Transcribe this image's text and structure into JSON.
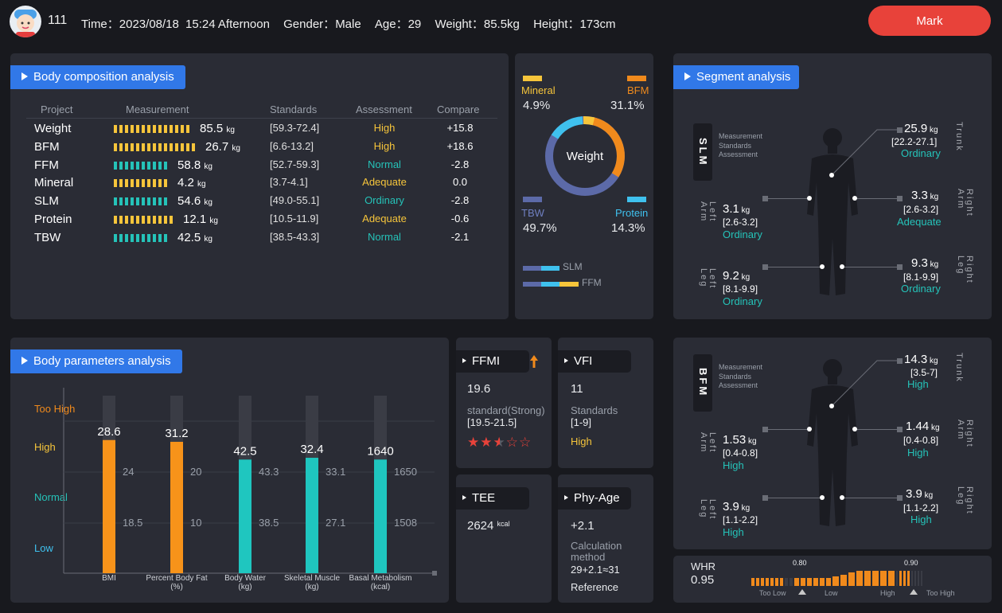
{
  "header": {
    "user_id": "111",
    "time_label": "Time：",
    "date": "2023/08/18",
    "clock": "15:24 Afternoon",
    "gender_label": "Gender：",
    "gender": "Male",
    "age_label": "Age：",
    "age": "29",
    "weight_label": "Weight：",
    "weight": "85.5kg",
    "height_label": "Height：",
    "height": "173cm",
    "mark_button": "Mark"
  },
  "composition": {
    "title": "Body composition analysis",
    "col_project": "Project",
    "col_measurement": "Measurement",
    "col_standards": "Standards",
    "col_assessment": "Assessment",
    "col_compare": "Compare",
    "unit": "kg",
    "rows": [
      {
        "name": "Weight",
        "value": "85.5",
        "standard": "[59.3-72.4]",
        "assessment": "High",
        "compare": "+15.8",
        "bar_segments": 14,
        "color": "#f6c53b",
        "assess_color": "#f6c53b"
      },
      {
        "name": "BFM",
        "value": "26.7",
        "standard": "[6.6-13.2]",
        "assessment": "High",
        "compare": "+18.6",
        "bar_segments": 15,
        "color": "#f6c53b",
        "assess_color": "#f6c53b"
      },
      {
        "name": "FFM",
        "value": "58.8",
        "standard": "[52.7-59.3]",
        "assessment": "Normal",
        "compare": "-2.8",
        "bar_segments": 10,
        "color": "#25c3b9",
        "assess_color": "#25c3b9"
      },
      {
        "name": "Mineral",
        "value": "4.2",
        "standard": "[3.7-4.1]",
        "assessment": "Adequate",
        "compare": "0.0",
        "bar_segments": 10,
        "color": "#f6c53b",
        "assess_color": "#f6c53b"
      },
      {
        "name": "SLM",
        "value": "54.6",
        "standard": "[49.0-55.1]",
        "assessment": "Ordinary",
        "compare": "-2.8",
        "bar_segments": 10,
        "color": "#25c3b9",
        "assess_color": "#25c3b9"
      },
      {
        "name": "Protein",
        "value": "12.1",
        "standard": "[10.5-11.9]",
        "assessment": "Adequate",
        "compare": "-0.6",
        "bar_segments": 11,
        "color": "#f6c53b",
        "assess_color": "#f6c53b"
      },
      {
        "name": "TBW",
        "value": "42.5",
        "standard": "[38.5-43.3]",
        "assessment": "Normal",
        "compare": "-2.1",
        "bar_segments": 10,
        "color": "#25c3b9",
        "assess_color": "#25c3b9"
      }
    ]
  },
  "weight_ring": {
    "center": "Weight",
    "mineral": {
      "label": "Mineral",
      "pct": "4.9%",
      "color": "#f6c53b"
    },
    "bfm": {
      "label": "BFM",
      "pct": "31.1%",
      "color": "#f08a1c"
    },
    "tbw": {
      "label": "TBW",
      "pct": "49.7%",
      "color": "#5c6aa8"
    },
    "protein": {
      "label": "Protein",
      "pct": "14.3%",
      "color": "#3fc1ee"
    },
    "legend_slm": "SLM",
    "legend_ffm": "FFM"
  },
  "segment": {
    "title": "Segment analysis",
    "slm": {
      "label": "SLM",
      "legend": [
        "Measurement",
        "Standards",
        "Assessment"
      ],
      "trunk": {
        "label": "Trunk",
        "value": "25.9",
        "std": "[22.2-27.1]",
        "as": "Ordinary"
      },
      "left_arm": {
        "label": "Left Arm",
        "value": "3.1",
        "std": "[2.6-3.2]",
        "as": "Ordinary"
      },
      "right_arm": {
        "label": "Right Arm",
        "value": "3.3",
        "std": "[2.6-3.2]",
        "as": "Adequate"
      },
      "left_leg": {
        "label": "Left Leg",
        "value": "9.2",
        "std": "[8.1-9.9]",
        "as": "Ordinary"
      },
      "right_leg": {
        "label": "Right Leg",
        "value": "9.3",
        "std": "[8.1-9.9]",
        "as": "Ordinary"
      }
    },
    "bfm": {
      "label": "BFM",
      "legend": [
        "Measurement",
        "Standards",
        "Assessment"
      ],
      "trunk": {
        "label": "Trunk",
        "value": "14.3",
        "std": "[3.5-7]",
        "as": "High"
      },
      "left_arm": {
        "label": "Left Arm",
        "value": "1.53",
        "std": "[0.4-0.8]",
        "as": "High"
      },
      "right_arm": {
        "label": "Right Arm",
        "value": "1.44",
        "std": "[0.4-0.8]",
        "as": "High"
      },
      "left_leg": {
        "label": "Left Leg",
        "value": "3.9",
        "std": "[1.1-2.2]",
        "as": "High"
      },
      "right_leg": {
        "label": "Right Leg",
        "value": "3.9",
        "std": "[1.1-2.2]",
        "as": "High"
      }
    }
  },
  "parameters": {
    "title": "Body parameters analysis",
    "levels": [
      "Too High",
      "High",
      "Normal",
      "Low"
    ]
  },
  "chart_data": {
    "type": "bar",
    "categories": [
      "BMI",
      "Percent Body Fat (%)",
      "Body Water (kg)",
      "Skeletal Muscle (kg)",
      "Basal Metabolism (kcal)"
    ],
    "values": [
      28.6,
      31.2,
      42.5,
      32.4,
      1640
    ],
    "value_labels": [
      "28.6",
      "31.2",
      "42.5",
      "32.4",
      "1640"
    ],
    "upper_standard": [
      "24",
      "20",
      "43.3",
      "33.1",
      "1650"
    ],
    "lower_standard": [
      "18.5",
      "10",
      "38.5",
      "27.1",
      "1508"
    ],
    "level_fraction": [
      0.75,
      0.74,
      0.64,
      0.65,
      0.64
    ],
    "colors": [
      "#f7931a",
      "#f7931a",
      "#1fc6bf",
      "#1fc6bf",
      "#1fc6bf"
    ],
    "ylevels": [
      "Too High",
      "High",
      "Normal",
      "Low"
    ]
  },
  "ffmi": {
    "title": "FFMI",
    "value": "19.6",
    "standard": "standard(Strong)",
    "range": "[19.5-21.5]",
    "stars": 2.5
  },
  "vfi": {
    "title": "VFI",
    "value": "11",
    "standards_label": "Standards",
    "range": "[1-9]",
    "assessment": "High"
  },
  "tee": {
    "title": "TEE",
    "value": "2624",
    "unit": "kcal"
  },
  "phy_age": {
    "title": "Phy-Age",
    "value": "+2.1",
    "method_label": "Calculation method",
    "formula": "29+2.1≈31",
    "reference": "Reference"
  },
  "whr": {
    "label": "WHR",
    "value": "0.95",
    "mark1": "0.80",
    "mark2": "0.90",
    "levels": [
      "Too Low",
      "Low",
      "High",
      "Too High"
    ]
  }
}
